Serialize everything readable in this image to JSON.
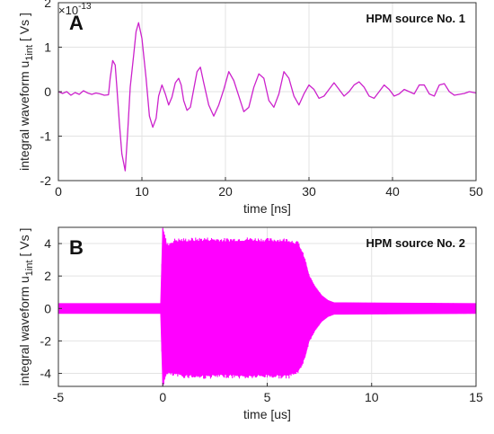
{
  "chart_data": [
    {
      "type": "line",
      "panel_label": "A",
      "title": "HPM source No. 1",
      "xlabel": "time [ns]",
      "ylabel_main": "integral waveform u",
      "ylabel_sub": "1int",
      "ylabel_unit": " [ Vs ]",
      "y_exponent_base": "×10",
      "y_exponent_power": "-13",
      "xlim": [
        0,
        50
      ],
      "ylim": [
        -2,
        2
      ],
      "x_ticks": [
        "0",
        "10",
        "20",
        "30",
        "40",
        "50"
      ],
      "y_ticks": [
        "-2",
        "-1",
        "0",
        "1",
        "2"
      ],
      "grid": true,
      "color": "#cc22cc",
      "series": [
        {
          "x": [
            0,
            0.5,
            1,
            1.5,
            2,
            2.5,
            3,
            3.5,
            4,
            4.5,
            5,
            5.5,
            6,
            6.2,
            6.5,
            6.8,
            7,
            7.3,
            7.6,
            8,
            8.3,
            8.6,
            9.0,
            9.3,
            9.6,
            10.0,
            10.5,
            10.9,
            11.3,
            11.7,
            12.0,
            12.4,
            12.8,
            13.2,
            13.6,
            14.0,
            14.4,
            14.7,
            15.0,
            15.4,
            15.8,
            16.2,
            16.6,
            17.0,
            17.4,
            18.0,
            18.6,
            19.2,
            19.8,
            20.4,
            21.0,
            21.6,
            22.2,
            22.8,
            23.4,
            24.0,
            24.6,
            25.2,
            25.8,
            26.4,
            27.0,
            27.6,
            28.2,
            28.8,
            29.4,
            30.0,
            30.6,
            31.2,
            31.8,
            32.4,
            33.0,
            33.6,
            34.2,
            34.8,
            35.4,
            36.0,
            36.6,
            37.2,
            37.8,
            38.4,
            39.0,
            39.6,
            40.2,
            40.8,
            41.4,
            42.0,
            42.6,
            43.2,
            43.8,
            44.4,
            45.0,
            45.6,
            46.2,
            46.8,
            47.4,
            48.0,
            48.6,
            49.2,
            50
          ],
          "y": [
            0.0,
            -0.04,
            0.0,
            -0.08,
            -0.02,
            -0.06,
            0.02,
            -0.03,
            -0.06,
            -0.03,
            -0.05,
            -0.08,
            -0.07,
            0.3,
            0.7,
            0.6,
            0.1,
            -0.7,
            -1.4,
            -1.78,
            -0.9,
            0.1,
            0.8,
            1.35,
            1.55,
            1.2,
            0.3,
            -0.55,
            -0.8,
            -0.6,
            -0.1,
            0.15,
            -0.05,
            -0.3,
            -0.12,
            0.2,
            0.3,
            0.15,
            -0.2,
            -0.42,
            -0.35,
            0.05,
            0.45,
            0.55,
            0.2,
            -0.3,
            -0.55,
            -0.3,
            0.05,
            0.45,
            0.25,
            -0.1,
            -0.45,
            -0.35,
            0.1,
            0.4,
            0.3,
            -0.2,
            -0.35,
            -0.05,
            0.45,
            0.3,
            -0.1,
            -0.3,
            -0.05,
            0.15,
            0.05,
            -0.15,
            -0.1,
            0.05,
            0.2,
            0.05,
            -0.1,
            0.0,
            0.15,
            0.22,
            0.1,
            -0.1,
            -0.15,
            0.0,
            0.15,
            0.05,
            -0.1,
            -0.05,
            0.05,
            0.0,
            -0.05,
            0.15,
            0.15,
            -0.05,
            -0.1,
            0.15,
            0.18,
            0.0,
            -0.08,
            -0.06,
            -0.04,
            0.0,
            -0.03
          ]
        }
      ]
    },
    {
      "type": "line",
      "panel_label": "B",
      "title": "HPM source No. 2",
      "xlabel": "time [us]",
      "ylabel_main": "integral waveform u",
      "ylabel_sub": "1int",
      "ylabel_unit": " [ Vs ]",
      "xlim": [
        -5,
        15
      ],
      "ylim": [
        -4.8,
        5
      ],
      "x_ticks": [
        "-5",
        "0",
        "5",
        "10",
        "15"
      ],
      "y_ticks": [
        "-4",
        "-2",
        "0",
        "2",
        "4"
      ],
      "grid": true,
      "color": "#ff00ff",
      "envelope": {
        "x": [
          -5,
          -0.1,
          0.0,
          0.2,
          0.6,
          1.0,
          2.0,
          3.0,
          4.0,
          5.0,
          6.0,
          6.5,
          6.8,
          7.0,
          7.3,
          7.6,
          7.9,
          8.2,
          15
        ],
        "upper": [
          0.3,
          0.3,
          4.9,
          3.8,
          4.1,
          4.1,
          4.15,
          4.1,
          4.15,
          4.1,
          4.1,
          3.9,
          3.0,
          2.0,
          1.3,
          0.8,
          0.5,
          0.35,
          0.3
        ],
        "lower": [
          -0.3,
          -0.3,
          -4.6,
          -3.9,
          -4.0,
          -4.05,
          -4.1,
          -4.05,
          -4.1,
          -4.05,
          -4.1,
          -3.8,
          -3.0,
          -2.0,
          -1.3,
          -0.8,
          -0.5,
          -0.35,
          -0.3
        ]
      }
    }
  ]
}
